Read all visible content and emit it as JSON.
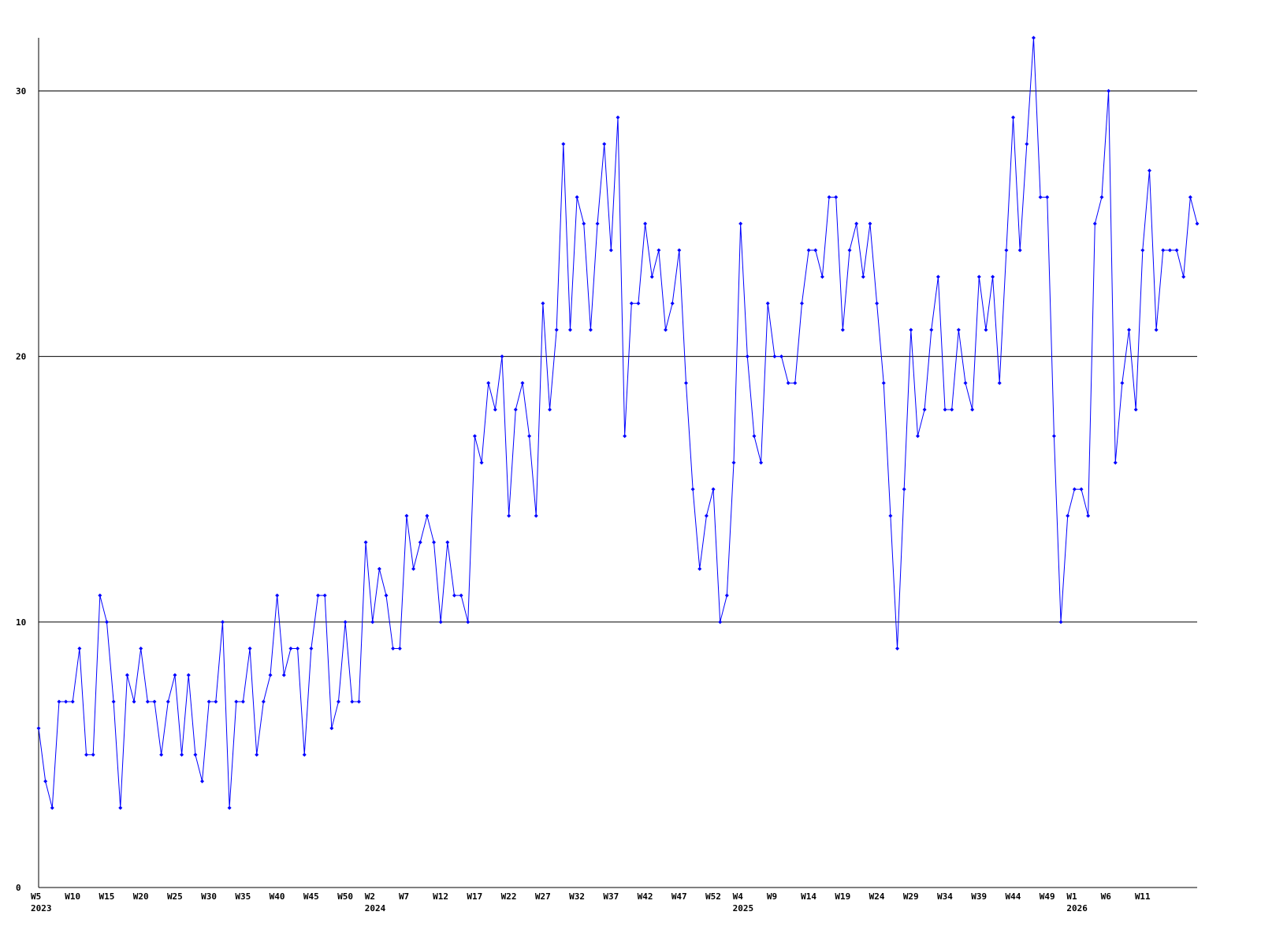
{
  "chart_data": {
    "type": "line",
    "color": "#0000ff",
    "grid": true,
    "marker": "diamond",
    "ylim": [
      0,
      32
    ],
    "yticks": [
      0,
      10,
      20,
      30
    ],
    "categories": [
      [
        "W5",
        "2023"
      ],
      null,
      null,
      null,
      null,
      "W10",
      null,
      null,
      null,
      null,
      "W15",
      null,
      null,
      null,
      null,
      "W20",
      null,
      null,
      null,
      null,
      "W25",
      null,
      null,
      null,
      null,
      "W30",
      null,
      null,
      null,
      null,
      "W35",
      null,
      null,
      null,
      null,
      "W40",
      null,
      null,
      null,
      null,
      "W45",
      null,
      null,
      null,
      null,
      "W50",
      null,
      null,
      null,
      [
        "W2",
        "2024"
      ],
      null,
      null,
      null,
      null,
      "W7",
      null,
      null,
      null,
      null,
      "W12",
      null,
      null,
      null,
      null,
      "W17",
      null,
      null,
      null,
      null,
      "W22",
      null,
      null,
      null,
      null,
      "W27",
      null,
      null,
      null,
      null,
      "W32",
      null,
      null,
      null,
      null,
      "W37",
      null,
      null,
      null,
      null,
      "W42",
      null,
      null,
      null,
      null,
      "W47",
      null,
      null,
      null,
      null,
      "W52",
      null,
      null,
      null,
      [
        "W4",
        "2025"
      ],
      null,
      null,
      null,
      null,
      "W9",
      null,
      null,
      null,
      null,
      "W14",
      null,
      null,
      null,
      null,
      "W19",
      null,
      null,
      null,
      null,
      "W24",
      null,
      null,
      null,
      null,
      "W29",
      null,
      null,
      null,
      null,
      "W34",
      null,
      null,
      null,
      null,
      "W39",
      null,
      null,
      null,
      null,
      "W44",
      null,
      null,
      null,
      null,
      "W49",
      null,
      null,
      null,
      [
        "W1",
        "2026"
      ],
      null,
      null,
      null,
      null,
      "W6",
      null,
      null,
      null,
      null,
      "W11",
      null,
      null,
      null,
      null,
      null,
      null,
      null,
      null
    ],
    "values": [
      6,
      4,
      3,
      7,
      7,
      7,
      9,
      5,
      5,
      11,
      10,
      7,
      3,
      8,
      7,
      9,
      7,
      7,
      5,
      7,
      8,
      5,
      8,
      5,
      4,
      7,
      7,
      10,
      3,
      7,
      7,
      9,
      5,
      7,
      8,
      11,
      8,
      9,
      9,
      5,
      9,
      11,
      11,
      6,
      7,
      10,
      7,
      7,
      13,
      10,
      12,
      11,
      9,
      9,
      14,
      12,
      13,
      14,
      13,
      10,
      13,
      11,
      11,
      10,
      17,
      16,
      19,
      18,
      20,
      14,
      18,
      19,
      17,
      14,
      22,
      18,
      21,
      28,
      21,
      26,
      25,
      21,
      25,
      28,
      24,
      29,
      17,
      22,
      22,
      25,
      23,
      24,
      21,
      22,
      24,
      19,
      15,
      12,
      14,
      15,
      10,
      11,
      16,
      25,
      20,
      17,
      16,
      22,
      20,
      20,
      19,
      19,
      22,
      24,
      24,
      23,
      26,
      26,
      21,
      24,
      25,
      23,
      25,
      22,
      19,
      14,
      9,
      15,
      21,
      17,
      18,
      21,
      23,
      18,
      18,
      21,
      19,
      18,
      23,
      21,
      23,
      19,
      24,
      29,
      24,
      28,
      32,
      26,
      26,
      17,
      10,
      14,
      15,
      15,
      14,
      25,
      26,
      30,
      16,
      19,
      21,
      18,
      24,
      27,
      21,
      24,
      24,
      24,
      23,
      26,
      25
    ]
  }
}
